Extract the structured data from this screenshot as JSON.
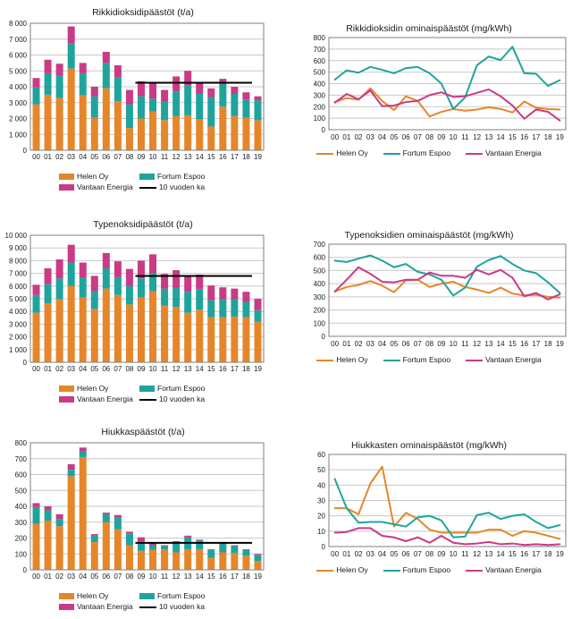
{
  "colors": {
    "helen": "#E5862B",
    "fortum": "#1FA49D",
    "vantaan": "#CA3A86",
    "average": "#000000",
    "grid": "#C8C8C8",
    "axis": "#7F7F7F",
    "text": "#1a1a1a"
  },
  "legend_labels": {
    "helen": "Helen Oy",
    "fortum": "Fortum Espoo",
    "vantaan": "Vantaan Energia",
    "average": "10 vuoden ka"
  },
  "chart_data": [
    {
      "id": "so2-paastot",
      "title": "Rikkidioksidipäästöt (t/a)",
      "type": "stacked-bar",
      "ylim": [
        0,
        8000
      ],
      "ystep": 1000,
      "grid": true,
      "legend_position": "bottom",
      "categories": [
        "00",
        "01",
        "02",
        "03",
        "04",
        "05",
        "06",
        "07",
        "08",
        "09",
        "10",
        "11",
        "12",
        "13",
        "14",
        "15",
        "16",
        "17",
        "18",
        "19"
      ],
      "series": [
        {
          "name": "Helen Oy",
          "color": "helen",
          "values": [
            2900,
            3500,
            3300,
            5150,
            3450,
            2050,
            3900,
            3100,
            1400,
            2000,
            2450,
            1900,
            2150,
            2200,
            1950,
            1500,
            2750,
            2150,
            2050,
            1900
          ]
        },
        {
          "name": "Fortum Espoo",
          "color": "fortum",
          "values": [
            1050,
            1350,
            1400,
            1600,
            1400,
            1350,
            1600,
            1500,
            1500,
            1400,
            800,
            1150,
            1550,
            1900,
            1600,
            1850,
            1450,
            1400,
            1150,
            1250
          ]
        },
        {
          "name": "Vantaan Energia",
          "color": "vantaan",
          "values": [
            600,
            850,
            750,
            1050,
            650,
            600,
            700,
            750,
            900,
            950,
            1000,
            750,
            950,
            900,
            700,
            550,
            300,
            450,
            450,
            250
          ]
        }
      ],
      "average_line": {
        "label": "10 vuoden ka",
        "value": 4250,
        "start_category": "09",
        "end_category": "18"
      },
      "legend": [
        {
          "label": "Helen Oy",
          "color": "helen",
          "marker": "rect"
        },
        {
          "label": "Fortum Espoo",
          "color": "fortum",
          "marker": "rect"
        },
        {
          "label": "Vantaan Energia",
          "color": "vantaan",
          "marker": "rect"
        },
        {
          "label": "10 vuoden ka",
          "color": "average",
          "marker": "line"
        }
      ]
    },
    {
      "id": "so2-ominaispaastot",
      "title": "Rikkidioksidin ominaispäästöt (mg/kWh)",
      "type": "line",
      "ylim": [
        0,
        800
      ],
      "ystep": 100,
      "grid": true,
      "legend_position": "bottom",
      "categories": [
        "00",
        "01",
        "02",
        "03",
        "04",
        "05",
        "06",
        "07",
        "08",
        "09",
        "10",
        "11",
        "12",
        "13",
        "14",
        "15",
        "16",
        "17",
        "18",
        "19"
      ],
      "series": [
        {
          "name": "Helen Oy",
          "color": "helen",
          "values": [
            240,
            275,
            260,
            360,
            250,
            170,
            290,
            250,
            115,
            155,
            180,
            165,
            175,
            195,
            180,
            150,
            245,
            190,
            180,
            175
          ]
        },
        {
          "name": "Fortum Espoo",
          "color": "fortum",
          "values": [
            435,
            515,
            495,
            545,
            520,
            490,
            535,
            545,
            490,
            400,
            180,
            280,
            560,
            635,
            605,
            720,
            490,
            485,
            380,
            430
          ]
        },
        {
          "name": "Vantaan Energia",
          "color": "vantaan",
          "values": [
            235,
            310,
            265,
            340,
            205,
            210,
            240,
            250,
            300,
            325,
            285,
            290,
            320,
            350,
            290,
            210,
            95,
            175,
            155,
            80
          ]
        }
      ],
      "legend": [
        {
          "label": "Helen Oy",
          "color": "helen",
          "marker": "line"
        },
        {
          "label": "Fortum Espoo",
          "color": "fortum",
          "marker": "line"
        },
        {
          "label": "Vantaan Energia",
          "color": "vantaan",
          "marker": "line"
        }
      ]
    },
    {
      "id": "nox-paastot",
      "title": "Typenoksidipäästöt (t/a)",
      "type": "stacked-bar",
      "ylim": [
        0,
        10000
      ],
      "ystep": 1000,
      "grid": true,
      "legend_position": "bottom",
      "categories": [
        "00",
        "01",
        "02",
        "03",
        "04",
        "05",
        "06",
        "07",
        "08",
        "09",
        "10",
        "11",
        "12",
        "13",
        "14",
        "15",
        "16",
        "17",
        "18",
        "19"
      ],
      "series": [
        {
          "name": "Helen Oy",
          "color": "helen",
          "values": [
            3900,
            4650,
            4950,
            6000,
            5100,
            4200,
            5800,
            5300,
            4550,
            5100,
            5600,
            4450,
            4350,
            3900,
            4150,
            3550,
            3550,
            3600,
            3550,
            3200
          ]
        },
        {
          "name": "Fortum Espoo",
          "color": "fortum",
          "values": [
            1400,
            1500,
            1650,
            1850,
            1550,
            1400,
            1600,
            1400,
            1450,
            1500,
            1400,
            1350,
            1500,
            1650,
            1600,
            1350,
            1450,
            1400,
            1200,
            900
          ]
        },
        {
          "name": "Vantaan Energia",
          "color": "vantaan",
          "values": [
            800,
            1250,
            1500,
            1400,
            1200,
            1200,
            1200,
            1250,
            1350,
            1400,
            1500,
            1150,
            1400,
            1250,
            1150,
            1150,
            900,
            800,
            800,
            900
          ]
        }
      ],
      "average_line": {
        "label": "10 vuoden ka",
        "value": 6800,
        "start_category": "09",
        "end_category": "18"
      },
      "legend": [
        {
          "label": "Helen Oy",
          "color": "helen",
          "marker": "rect"
        },
        {
          "label": "Fortum Espoo",
          "color": "fortum",
          "marker": "rect"
        },
        {
          "label": "Vantaan Energia",
          "color": "vantaan",
          "marker": "rect"
        },
        {
          "label": "10 vuoden ka",
          "color": "average",
          "marker": "line"
        }
      ]
    },
    {
      "id": "nox-ominaispaastot",
      "title": "Typenoksidien ominaispäästöt (mg/kWh)",
      "type": "line",
      "ylim": [
        0,
        700
      ],
      "ystep": 100,
      "grid": true,
      "legend_position": "bottom",
      "categories": [
        "00",
        "01",
        "02",
        "03",
        "04",
        "05",
        "06",
        "07",
        "08",
        "09",
        "10",
        "11",
        "12",
        "13",
        "14",
        "15",
        "16",
        "17",
        "18",
        "19"
      ],
      "series": [
        {
          "name": "Helen Oy",
          "color": "helen",
          "values": [
            340,
            375,
            390,
            420,
            385,
            335,
            425,
            430,
            375,
            400,
            415,
            375,
            355,
            330,
            370,
            325,
            310,
            315,
            300,
            295
          ]
        },
        {
          "name": "Fortum Espoo",
          "color": "fortum",
          "values": [
            575,
            565,
            590,
            615,
            575,
            525,
            550,
            490,
            470,
            430,
            310,
            370,
            530,
            580,
            610,
            550,
            500,
            480,
            410,
            330
          ]
        },
        {
          "name": "Vantaan Energia",
          "color": "vantaan",
          "values": [
            340,
            430,
            525,
            475,
            415,
            410,
            430,
            430,
            485,
            460,
            460,
            445,
            505,
            470,
            505,
            445,
            305,
            330,
            280,
            320
          ]
        }
      ],
      "legend": [
        {
          "label": "Helen Oy",
          "color": "helen",
          "marker": "line"
        },
        {
          "label": "Fortum Espoo",
          "color": "fortum",
          "marker": "line"
        },
        {
          "label": "Vantaan Energia",
          "color": "vantaan",
          "marker": "line"
        }
      ]
    },
    {
      "id": "hiukkaspaastot",
      "title": "Hiukkaspäästöt (t/a)",
      "type": "stacked-bar",
      "ylim": [
        0,
        800
      ],
      "ystep": 100,
      "grid": true,
      "legend_position": "bottom",
      "categories": [
        "00",
        "01",
        "02",
        "03",
        "04",
        "05",
        "06",
        "07",
        "08",
        "09",
        "10",
        "11",
        "12",
        "13",
        "14",
        "15",
        "16",
        "17",
        "18",
        "19"
      ],
      "series": [
        {
          "name": "Helen Oy",
          "color": "helen",
          "values": [
            290,
            310,
            275,
            590,
            710,
            175,
            300,
            255,
            155,
            120,
            125,
            130,
            110,
            130,
            130,
            75,
            110,
            105,
            90,
            55
          ]
        },
        {
          "name": "Fortum Espoo",
          "color": "fortum",
          "values": [
            105,
            65,
            45,
            40,
            35,
            40,
            50,
            75,
            75,
            60,
            30,
            20,
            60,
            75,
            55,
            50,
            60,
            45,
            35,
            40
          ]
        },
        {
          "name": "Vantaan Energia",
          "color": "vantaan",
          "values": [
            25,
            25,
            30,
            35,
            25,
            10,
            10,
            15,
            10,
            25,
            15,
            5,
            10,
            10,
            5,
            5,
            5,
            5,
            5,
            5
          ]
        }
      ],
      "average_line": {
        "label": "10 vuoden ka",
        "value": 170,
        "start_category": "09",
        "end_category": "18"
      },
      "legend": [
        {
          "label": "Helen Oy",
          "color": "helen",
          "marker": "rect"
        },
        {
          "label": "Fortum Espoo",
          "color": "fortum",
          "marker": "rect"
        },
        {
          "label": "Vantaan Energia",
          "color": "vantaan",
          "marker": "rect"
        },
        {
          "label": "10 vuoden ka",
          "color": "average",
          "marker": "line"
        }
      ]
    },
    {
      "id": "hiukkasten-ominaispaastot",
      "title": "Hiukkasten ominaispäästöt (mg/kWh)",
      "type": "line",
      "ylim": [
        0,
        60
      ],
      "ystep": 10,
      "grid": true,
      "legend_position": "bottom",
      "categories": [
        "00",
        "01",
        "02",
        "03",
        "04",
        "05",
        "06",
        "07",
        "08",
        "09",
        "10",
        "11",
        "12",
        "13",
        "14",
        "15",
        "16",
        "17",
        "18",
        "19"
      ],
      "series": [
        {
          "name": "Helen Oy",
          "color": "helen",
          "values": [
            25,
            25,
            21,
            41,
            52,
            13,
            22,
            18,
            11,
            9,
            9,
            9,
            9,
            11,
            11,
            7,
            10,
            9,
            7,
            5
          ]
        },
        {
          "name": "Fortum Espoo",
          "color": "fortum",
          "values": [
            44,
            25,
            15.5,
            16,
            16,
            14.5,
            13,
            19,
            20,
            17,
            6,
            6.5,
            20.5,
            22,
            18,
            20,
            21,
            16,
            12,
            14
          ]
        },
        {
          "name": "Vantaan Energia",
          "color": "vantaan",
          "values": [
            9,
            9.5,
            12,
            12,
            7,
            6,
            3.5,
            6,
            2.5,
            7,
            2.5,
            1.5,
            2,
            3,
            1.5,
            2,
            1,
            1.5,
            1,
            1.5
          ]
        }
      ],
      "legend": [
        {
          "label": "Helen Oy",
          "color": "helen",
          "marker": "line"
        },
        {
          "label": "Fortum Espoo",
          "color": "fortum",
          "marker": "line"
        },
        {
          "label": "Vantaan Energia",
          "color": "vantaan",
          "marker": "line"
        }
      ]
    }
  ]
}
